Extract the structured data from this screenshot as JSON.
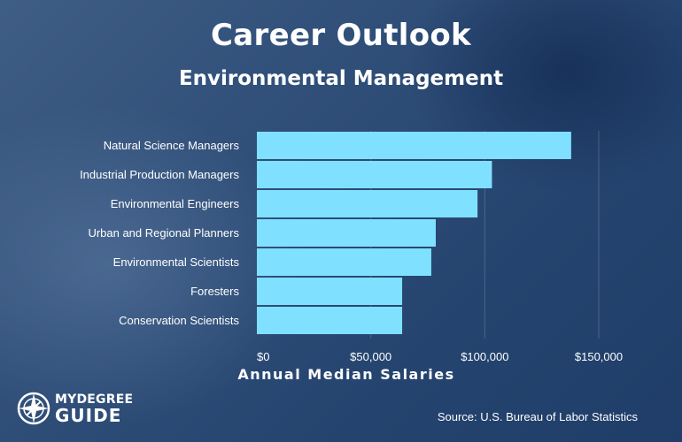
{
  "header": {
    "title": "Career Outlook",
    "subtitle": "Environmental Management"
  },
  "chart_data": {
    "type": "bar",
    "orientation": "horizontal",
    "categories": [
      "Natural Science Managers",
      "Industrial Production Managers",
      "Environmental Engineers",
      "Urban and Regional Planners",
      "Environmental Scientists",
      "Foresters",
      "Conservation Scientists"
    ],
    "values": [
      137900,
      103150,
      96820,
      78500,
      76530,
      63750,
      63750
    ],
    "xlabel": "Annual Median Salaries",
    "xlim": [
      0,
      150000
    ],
    "xticks": [
      {
        "value": 0,
        "label": "$0"
      },
      {
        "value": 50000,
        "label": "$50,000"
      },
      {
        "value": 100000,
        "label": "$100,000"
      },
      {
        "value": 150000,
        "label": "$150,000"
      }
    ],
    "grid": "vertical",
    "bar_color": "#7fe0ff"
  },
  "footer": {
    "logo_line1": "MYDEGREE",
    "logo_line2": "GUIDE",
    "source": "Source: U.S. Bureau of Labor Statistics"
  }
}
